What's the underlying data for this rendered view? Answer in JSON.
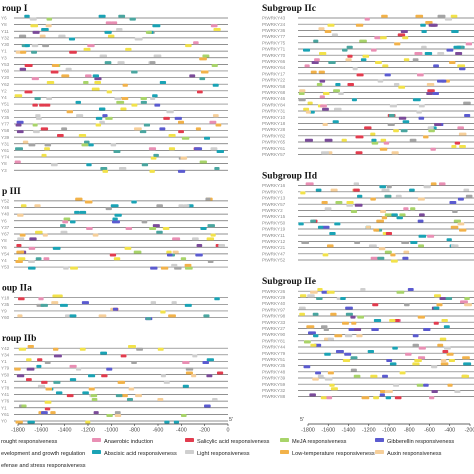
{
  "colors": {
    "drought": "#7b4b9a",
    "development": "#4aa6a0",
    "defense": "#a5a5a5",
    "anaerobic": "#e98fb4",
    "abscisic": "#1aa3b5",
    "salicylic": "#e23c4e",
    "light": "#cfcfcf",
    "meja": "#a8d46a",
    "lowtemp": "#f2b24a",
    "gibberellin": "#5b5bd0",
    "auxin": "#f6cf9a",
    "yellow": "#f2e24a"
  },
  "left_panel": {
    "groups": [
      {
        "title": "roup I",
        "labels": [
          "Y6",
          "Y8",
          "Y11",
          "Y32",
          "Y30",
          "Y1",
          "Y3",
          "Y53",
          "Y60",
          "Y20",
          "Y62",
          "Y2",
          "Y4",
          "Y51",
          "Y63",
          "Y35",
          "Y77",
          "Y58",
          "Y39",
          "Y31",
          "Y61",
          "Y74",
          "Y8",
          "Y3"
        ]
      },
      {
        "title": "p III",
        "labels": [
          "Y52",
          "Y46",
          "Y40",
          "Y6",
          "Y37",
          "Y67",
          "Y8",
          "Y6",
          "Y54",
          "Y4",
          "Y53"
        ]
      },
      {
        "title": "oup IIa",
        "labels": [
          "Y18",
          "Y35",
          "Y9",
          "Y60"
        ]
      },
      {
        "title": "roup IIb",
        "labels": [
          "Y42",
          "Y34",
          "Y1",
          "Y79",
          "Y50",
          "Y1",
          "Y78",
          "Y41",
          "Y76",
          "Y1",
          "Y61",
          "Y0"
        ]
      }
    ],
    "axis_ticks": [
      "-1800",
      "-1600",
      "-1400",
      "-1200",
      "-1000",
      "-800",
      "-600",
      "-400",
      "-200",
      "0"
    ],
    "axis_end_label": "5'"
  },
  "right_panel": {
    "groups": [
      {
        "title": "Subgroup IIc",
        "labels": [
          "PtWRKY43",
          "PtWRKY24",
          "PtWRKY36",
          "PtWRKY77",
          "PtWRKY75",
          "PtWRKY71",
          "PtWRKY70",
          "PtWRKY66",
          "PtWRKY64",
          "PtWRKY17",
          "PtWRKY22",
          "PtWRKY58",
          "PtWRKY68",
          "PtWRKY46",
          "PtWRKY84",
          "PtWRKY31",
          "PtWRKY10",
          "PtWRKY18",
          "PtWRKY28",
          "PtWRKY82",
          "PtWRKY65",
          "PtWRKY61",
          "PtWRKY57"
        ]
      },
      {
        "title": "Subgroup IId",
        "labels": [
          "PtWRKY16",
          "PtWRKY6",
          "PtWRKY13",
          "PtWRKY57",
          "PtWRKY2",
          "PtWRKY15",
          "PtWRKY50",
          "PtWRKY19",
          "PtWRKY11",
          "PtWRKY12",
          "PtWRKY21",
          "PtWRKY47",
          "PtWRKY52"
        ]
      },
      {
        "title": "Subgroup IIe",
        "labels": [
          "PtWRKY26",
          "PtWRKY29",
          "PtWRKY40",
          "PtWRKY97",
          "PtWRKY98",
          "PtWRKY33",
          "PtWRKY27",
          "PtWRKY90",
          "PtWRKY81",
          "PtWRKY44",
          "PtWRKY79",
          "PtWRKY51",
          "PtWRKY35",
          "PtWRKY48",
          "PtWRKY39",
          "PtWRKY59",
          "PtWRKY32",
          "PtWRKY88"
        ]
      }
    ],
    "axis_ticks": [
      "-1800",
      "-1600",
      "-1400",
      "-1200",
      "-1000",
      "-800",
      "-600",
      "-400",
      "-200"
    ],
    "axis_start_label": "5'"
  },
  "legend": [
    {
      "label": "rought responsiveness",
      "color_key": "drought"
    },
    {
      "label": "Anaerobic induction",
      "color_key": "anaerobic"
    },
    {
      "label": "Salicylic acid responsiveness",
      "color_key": "salicylic"
    },
    {
      "label": "MeJA responsiveness",
      "color_key": "meja"
    },
    {
      "label": "Gibberellin responsiveness",
      "color_key": "gibberellin"
    },
    {
      "label": "evelopment and growth regulation",
      "color_key": "development"
    },
    {
      "label": "Abscisic acid responsiveness",
      "color_key": "abscisic"
    },
    {
      "label": "Light responsiveness",
      "color_key": "light"
    },
    {
      "label": "Low-temperature responsiveness",
      "color_key": "lowtemp"
    },
    {
      "label": "Auxin responsiveness",
      "color_key": "auxin"
    },
    {
      "label": "efense and stress responsiveness",
      "color_key": "defense"
    }
  ]
}
